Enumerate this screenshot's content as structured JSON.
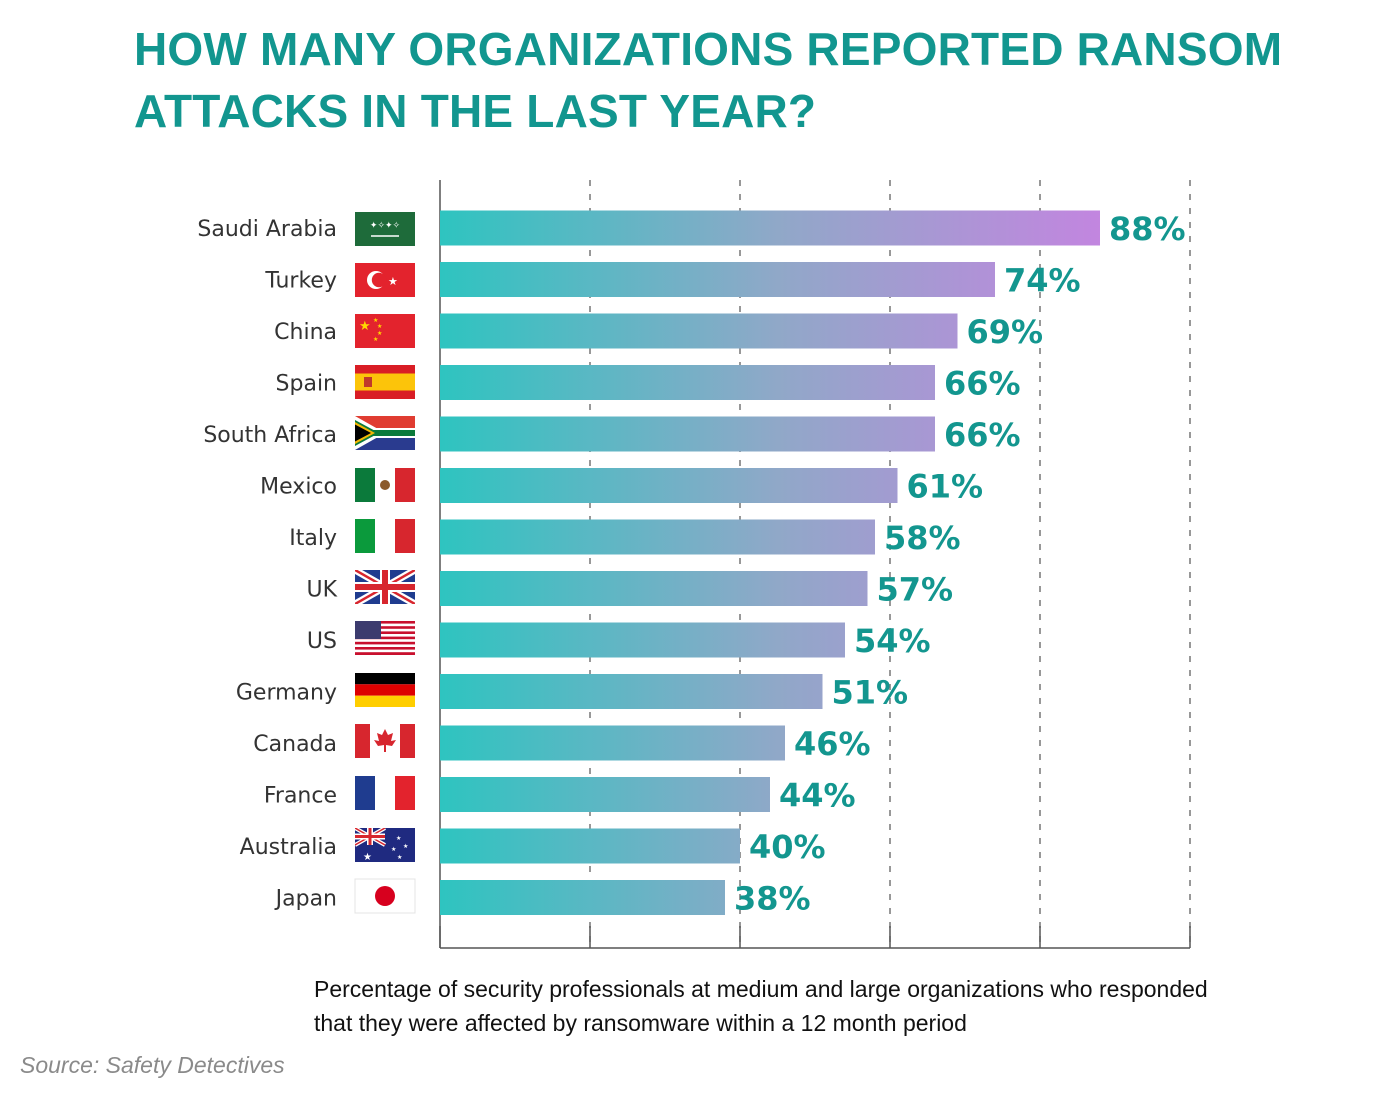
{
  "title": "HOW MANY ORGANIZATIONS REPORTED RANSOM ATTACKS IN THE LAST YEAR?",
  "caption": "Percentage of security professionals at medium and large organizations who responded that they were affected by ransomware within a 12 month period",
  "source": "Source: Safety Detectives",
  "colors": {
    "title": "#12968f",
    "value_label": "#13968f",
    "bar_start": "#2ec4c0",
    "bar_end": "#c97ae0"
  },
  "chart_data": {
    "type": "bar",
    "orientation": "horizontal",
    "categories": [
      "Saudi Arabia",
      "Turkey",
      "China",
      "Spain",
      "South Africa",
      "Mexico",
      "Italy",
      "UK",
      "US",
      "Germany",
      "Canada",
      "France",
      "Australia",
      "Japan"
    ],
    "values": [
      88,
      74,
      69,
      66,
      66,
      61,
      58,
      57,
      54,
      51,
      46,
      44,
      40,
      38
    ],
    "value_labels": [
      "88%",
      "74%",
      "69%",
      "66%",
      "66%",
      "61%",
      "58%",
      "57%",
      "54%",
      "51%",
      "46%",
      "44%",
      "40%",
      "38%"
    ],
    "flag_icons": [
      "saudi-arabia-flag-icon",
      "turkey-flag-icon",
      "china-flag-icon",
      "spain-flag-icon",
      "south-africa-flag-icon",
      "mexico-flag-icon",
      "italy-flag-icon",
      "uk-flag-icon",
      "us-flag-icon",
      "germany-flag-icon",
      "canada-flag-icon",
      "france-flag-icon",
      "australia-flag-icon",
      "japan-flag-icon"
    ],
    "xlim": [
      0,
      100
    ],
    "grid": "vertical dashed",
    "title": "HOW MANY ORGANIZATIONS REPORTED RANSOM ATTACKS IN THE LAST YEAR?"
  }
}
